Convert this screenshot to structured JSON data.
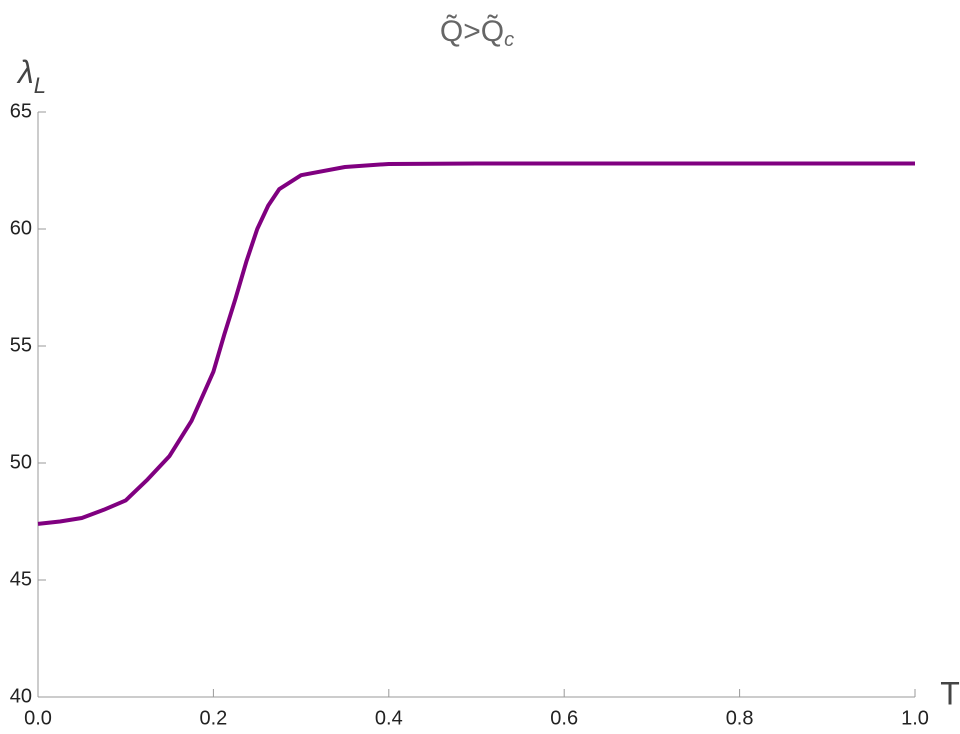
{
  "chart_data": {
    "type": "line",
    "title": "Q̃>Q̃",
    "title_sub": "c",
    "ylabel": "λ",
    "ylabel_sub": "L",
    "xlabel": "T",
    "x": [
      0,
      0.025,
      0.05,
      0.075,
      0.1,
      0.125,
      0.15,
      0.175,
      0.2,
      0.2125,
      0.225,
      0.2375,
      0.25,
      0.2625,
      0.275,
      0.3,
      0.35,
      0.4,
      0.5,
      0.6,
      0.8,
      1.0
    ],
    "series": [
      {
        "name": "λL",
        "color": "#800080",
        "values": [
          47.4,
          47.5,
          47.65,
          48.0,
          48.4,
          49.3,
          50.3,
          51.8,
          53.9,
          55.5,
          57.0,
          58.6,
          60.0,
          61.0,
          61.7,
          62.3,
          62.65,
          62.78,
          62.8,
          62.8,
          62.8,
          62.8
        ]
      }
    ],
    "xlim": [
      0,
      1
    ],
    "ylim": [
      40,
      65
    ],
    "xticks": [
      {
        "value": 0,
        "label": "0.0"
      },
      0.2,
      0.4,
      0.6,
      0.8,
      {
        "value": 1,
        "label": "1.0"
      }
    ],
    "yticks": [
      40,
      45,
      50,
      55,
      60,
      65
    ]
  }
}
